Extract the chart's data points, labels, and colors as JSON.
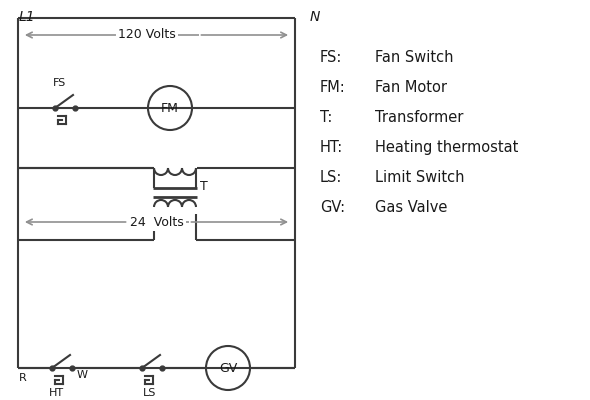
{
  "bg_color": "#ffffff",
  "line_color": "#3a3a3a",
  "arrow_color": "#909090",
  "text_color": "#1a1a1a",
  "legend_items": [
    [
      "FS:",
      "Fan Switch"
    ],
    [
      "FM:",
      "Fan Motor"
    ],
    [
      "T:",
      "Transformer"
    ],
    [
      "HT:",
      "Heating thermostat"
    ],
    [
      "LS:",
      "Limit Switch"
    ],
    [
      "GV:",
      "Gas Valve"
    ]
  ],
  "label_L1": "L1",
  "label_N": "N",
  "label_120V": "120 Volts",
  "label_24V": "24  Volts",
  "label_T": "T",
  "label_R": "R",
  "label_W": "W",
  "label_HT": "HT",
  "label_LS": "LS"
}
